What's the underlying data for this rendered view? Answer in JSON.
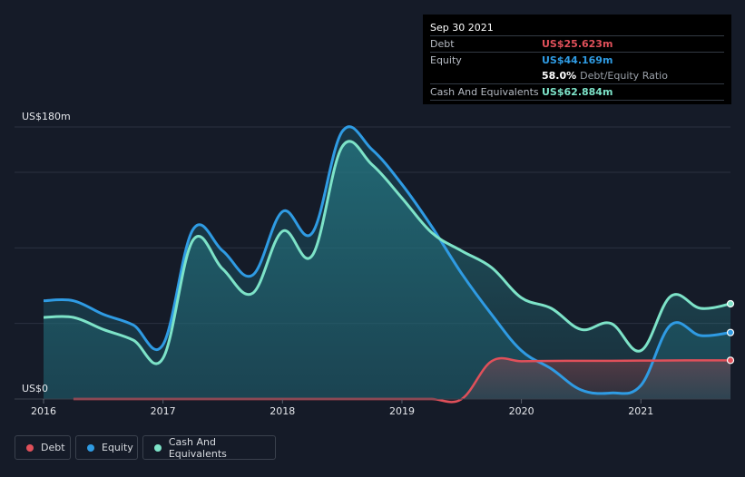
{
  "tooltip": {
    "date": "Sep 30 2021",
    "debt_label": "Debt",
    "debt_value": "US$25.623m",
    "equity_label": "Equity",
    "equity_value": "US$44.169m",
    "ratio_pct": "58.0%",
    "ratio_label": "Debt/Equity Ratio",
    "cash_label": "Cash And Equivalents",
    "cash_value": "US$62.884m"
  },
  "legend": {
    "debt": "Debt",
    "equity": "Equity",
    "cash": "Cash And Equivalents"
  },
  "colors": {
    "debt": "#e0505a",
    "equity": "#2f9be3",
    "cash": "#7de3c8",
    "background": "#151b28"
  },
  "chart_data": {
    "type": "area",
    "title": "",
    "xlabel": "",
    "ylabel": "",
    "y_top_label": "US$180m",
    "y_bottom_label": "US$0",
    "ylim": [
      0,
      180
    ],
    "xlim": [
      2016,
      2021.75
    ],
    "xticks": [
      "2016",
      "2017",
      "2018",
      "2019",
      "2020",
      "2021"
    ],
    "series": [
      {
        "name": "Equity",
        "points": [
          [
            2016.0,
            65
          ],
          [
            2016.25,
            65
          ],
          [
            2016.5,
            56
          ],
          [
            2016.75,
            49
          ],
          [
            2017.0,
            36
          ],
          [
            2017.25,
            112
          ],
          [
            2017.5,
            98
          ],
          [
            2017.75,
            82
          ],
          [
            2018.0,
            124
          ],
          [
            2018.25,
            110
          ],
          [
            2018.5,
            177
          ],
          [
            2018.75,
            165
          ],
          [
            2019.0,
            142
          ],
          [
            2019.25,
            114
          ],
          [
            2019.5,
            83
          ],
          [
            2019.75,
            56
          ],
          [
            2020.0,
            32
          ],
          [
            2020.25,
            20
          ],
          [
            2020.5,
            6
          ],
          [
            2020.75,
            4
          ],
          [
            2021.0,
            9
          ],
          [
            2021.25,
            49
          ],
          [
            2021.5,
            42
          ],
          [
            2021.75,
            44
          ]
        ]
      },
      {
        "name": "Cash And Equivalents",
        "points": [
          [
            2016.0,
            54
          ],
          [
            2016.25,
            54
          ],
          [
            2016.5,
            46
          ],
          [
            2016.75,
            39
          ],
          [
            2017.0,
            27
          ],
          [
            2017.25,
            105
          ],
          [
            2017.5,
            86
          ],
          [
            2017.75,
            70
          ],
          [
            2018.0,
            111
          ],
          [
            2018.25,
            95
          ],
          [
            2018.5,
            167
          ],
          [
            2018.75,
            155
          ],
          [
            2019.0,
            133
          ],
          [
            2019.25,
            110
          ],
          [
            2019.5,
            98
          ],
          [
            2019.75,
            87
          ],
          [
            2020.0,
            67
          ],
          [
            2020.25,
            60
          ],
          [
            2020.5,
            46
          ],
          [
            2020.75,
            50
          ],
          [
            2021.0,
            32
          ],
          [
            2021.25,
            68
          ],
          [
            2021.5,
            60
          ],
          [
            2021.75,
            63
          ]
        ]
      },
      {
        "name": "Debt",
        "points": [
          [
            2016.25,
            0
          ],
          [
            2016.5,
            0
          ],
          [
            2016.75,
            0
          ],
          [
            2017.0,
            0
          ],
          [
            2017.25,
            0
          ],
          [
            2017.5,
            0
          ],
          [
            2017.75,
            0
          ],
          [
            2018.0,
            0
          ],
          [
            2018.25,
            0
          ],
          [
            2018.5,
            0
          ],
          [
            2018.75,
            0
          ],
          [
            2019.0,
            0
          ],
          [
            2019.25,
            0
          ],
          [
            2019.5,
            0
          ],
          [
            2019.75,
            25
          ],
          [
            2020.0,
            25
          ],
          [
            2020.25,
            25.2
          ],
          [
            2020.5,
            25.3
          ],
          [
            2020.75,
            25.3
          ],
          [
            2021.0,
            25.4
          ],
          [
            2021.25,
            25.5
          ],
          [
            2021.5,
            25.6
          ],
          [
            2021.75,
            25.6
          ]
        ]
      }
    ]
  }
}
